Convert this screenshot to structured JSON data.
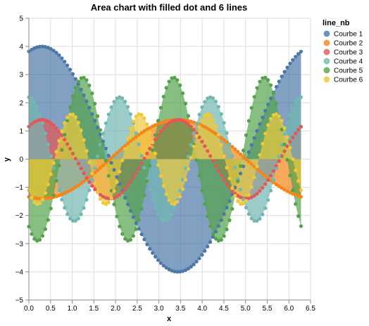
{
  "chart_data": {
    "type": "area",
    "title": "Area chart with filled dot and 6 lines",
    "xlabel": "x",
    "ylabel": "y",
    "xlim": [
      0,
      6.5
    ],
    "ylim": [
      -5,
      5
    ],
    "x_ticks": [
      "0.0",
      "0.5",
      "1.0",
      "1.5",
      "2.0",
      "2.5",
      "3.0",
      "3.5",
      "4.0",
      "4.5",
      "5.0",
      "5.5",
      "6.0",
      "6.5"
    ],
    "y_ticks": [
      "−5",
      "−4",
      "−3",
      "−2",
      "−1",
      "0",
      "1",
      "2",
      "3",
      "4",
      "5"
    ],
    "grid": true,
    "x_start": 0,
    "x_end": 6.28,
    "point_count": 100,
    "legend": {
      "title": "line_nb",
      "placement": "top-right"
    },
    "series": [
      {
        "name": "Courbe 1",
        "color": "#4c78a8",
        "formula": "4*cos(x - 0.3)"
      },
      {
        "name": "Courbe 2",
        "color": "#f58518",
        "formula": "-1.4*cos(x - 0.3)"
      },
      {
        "name": "Courbe 3",
        "color": "#e45756",
        "formula": "1.4*cos(2x - 0.6)"
      },
      {
        "name": "Courbe 4",
        "color": "#72b7b2",
        "formula": "2.2*cos(3x)"
      },
      {
        "name": "Courbe 5",
        "color": "#54a24b",
        "formula": "-2.9*cos(3x - 0.6)"
      },
      {
        "name": "Courbe 6",
        "color": "#eeca3b",
        "formula": "-1.6*cos(4x - 0.8)"
      }
    ]
  }
}
